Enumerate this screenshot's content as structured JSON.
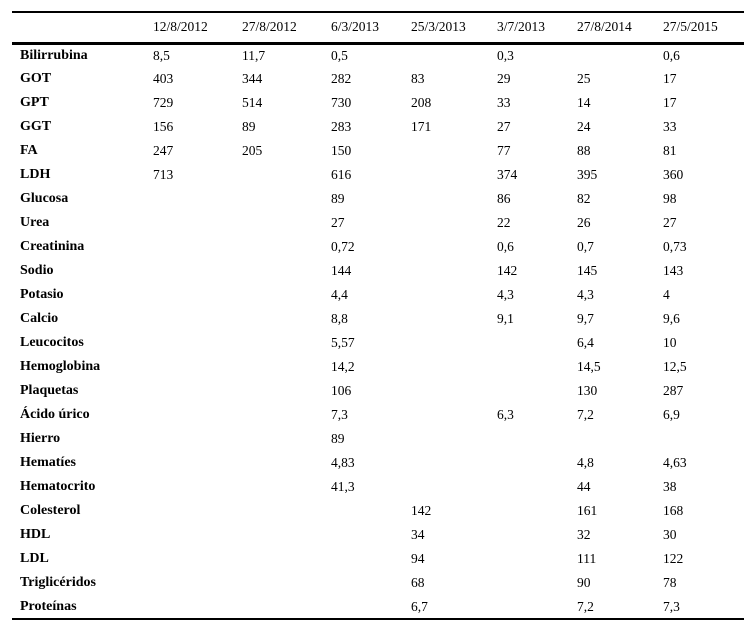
{
  "page": {
    "background": "#ffffff",
    "text_color": "#000000"
  },
  "table": {
    "description": "lab-results-by-date",
    "columns": [
      "",
      "12/8/2012",
      "27/8/2012",
      "6/3/2013",
      "25/3/2013",
      "3/7/2013",
      "27/8/2014",
      "27/5/2015"
    ],
    "rows": [
      {
        "label": "Bilirrubina",
        "values": [
          "8,5",
          "11,7",
          "0,5",
          "",
          "0,3",
          "",
          "0,6"
        ]
      },
      {
        "label": "GOT",
        "values": [
          "403",
          "344",
          "282",
          "83",
          "29",
          "25",
          "17"
        ]
      },
      {
        "label": "GPT",
        "values": [
          "729",
          "514",
          "730",
          "208",
          "33",
          "14",
          "17"
        ]
      },
      {
        "label": "GGT",
        "values": [
          "156",
          "89",
          "283",
          "171",
          "27",
          "24",
          "33"
        ]
      },
      {
        "label": "FA",
        "values": [
          "247",
          "205",
          "150",
          "",
          "77",
          "88",
          "81"
        ]
      },
      {
        "label": "LDH",
        "values": [
          "713",
          "",
          "616",
          "",
          "374",
          "395",
          "360"
        ]
      },
      {
        "label": "Glucosa",
        "values": [
          "",
          "",
          "89",
          "",
          "86",
          "82",
          "98"
        ]
      },
      {
        "label": "Urea",
        "values": [
          "",
          "",
          "27",
          "",
          "22",
          "26",
          "27"
        ]
      },
      {
        "label": "Creatinina",
        "values": [
          "",
          "",
          "0,72",
          "",
          "0,6",
          "0,7",
          "0,73"
        ]
      },
      {
        "label": "Sodio",
        "values": [
          "",
          "",
          "144",
          "",
          "142",
          "145",
          "143"
        ]
      },
      {
        "label": "Potasio",
        "values": [
          "",
          "",
          "4,4",
          "",
          "4,3",
          "4,3",
          "4"
        ]
      },
      {
        "label": "Calcio",
        "values": [
          "",
          "",
          "8,8",
          "",
          "9,1",
          "9,7",
          "9,6"
        ]
      },
      {
        "label": "Leucocitos",
        "values": [
          "",
          "",
          "5,57",
          "",
          "",
          "6,4",
          "10"
        ]
      },
      {
        "label": "Hemoglobina",
        "values": [
          "",
          "",
          "14,2",
          "",
          "",
          "14,5",
          "12,5"
        ]
      },
      {
        "label": "Plaquetas",
        "values": [
          "",
          "",
          "106",
          "",
          "",
          "130",
          "287"
        ]
      },
      {
        "label": "Ácido úrico",
        "values": [
          "",
          "",
          "7,3",
          "",
          "6,3",
          "7,2",
          "6,9"
        ]
      },
      {
        "label": "Hierro",
        "values": [
          "",
          "",
          "89",
          "",
          "",
          "",
          ""
        ]
      },
      {
        "label": "Hematíes",
        "values": [
          "",
          "",
          "4,83",
          "",
          "",
          "4,8",
          "4,63"
        ]
      },
      {
        "label": "Hematocrito",
        "values": [
          "",
          "",
          "41,3",
          "",
          "",
          "44",
          "38"
        ]
      },
      {
        "label": "Colesterol",
        "values": [
          "",
          "",
          "",
          "142",
          "",
          "161",
          "168"
        ]
      },
      {
        "label": "HDL",
        "values": [
          "",
          "",
          "",
          "34",
          "",
          "32",
          "30"
        ]
      },
      {
        "label": "LDL",
        "values": [
          "",
          "",
          "",
          "94",
          "",
          "111",
          "122"
        ]
      },
      {
        "label": "Triglicéridos",
        "values": [
          "",
          "",
          "",
          "68",
          "",
          "90",
          "78"
        ]
      },
      {
        "label": "Proteínas",
        "values": [
          "",
          "",
          "",
          "6,7",
          "",
          "7,2",
          "7,3"
        ]
      }
    ]
  }
}
